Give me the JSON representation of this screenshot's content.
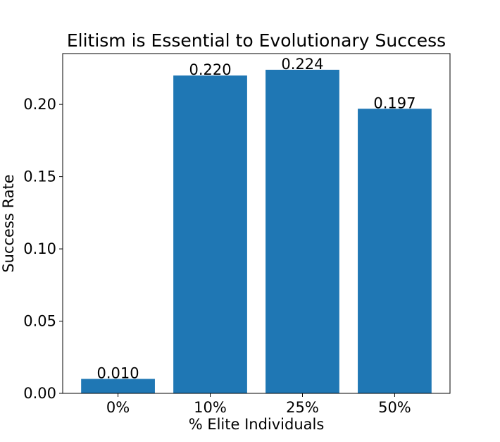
{
  "chart_data": {
    "type": "bar",
    "title": "Elitism is Essential to Evolutionary Success",
    "xlabel": "% Elite Individuals",
    "ylabel": "Success Rate",
    "categories": [
      "0%",
      "10%",
      "25%",
      "50%"
    ],
    "values": [
      0.01,
      0.22,
      0.224,
      0.197
    ],
    "data_labels": [
      "0.010",
      "0.220",
      "0.224",
      "0.197"
    ],
    "ylim": [
      0,
      0.2352
    ],
    "yticks": [
      0.0,
      0.05,
      0.1,
      0.15,
      0.2
    ],
    "ytick_labels": [
      "0.00",
      "0.05",
      "0.10",
      "0.15",
      "0.20"
    ],
    "bar_color": "#1f77b4",
    "grid": false,
    "legend": "none"
  }
}
